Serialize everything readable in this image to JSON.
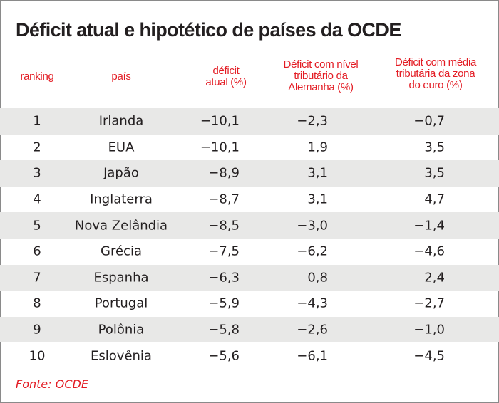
{
  "chart_data": {
    "type": "table",
    "title": "Déficit atual e hipotético de países da OCDE",
    "columns": {
      "ranking": "ranking",
      "country": "país",
      "current": [
        "déficit",
        "atual (%)"
      ],
      "germany": [
        "Déficit com nível",
        "tributário da",
        "Alemanha (%)"
      ],
      "eurozone": [
        "Déficit com média",
        "tributária da zona",
        "do euro (%)"
      ]
    },
    "rows": [
      {
        "rank": "1",
        "country": "Irlanda",
        "current": "−10,1",
        "germany": "−2,3",
        "eurozone": "−0,7"
      },
      {
        "rank": "2",
        "country": "EUA",
        "current": "−10,1",
        "germany": "1,9",
        "eurozone": "3,5"
      },
      {
        "rank": "3",
        "country": "Japão",
        "current": "−8,9",
        "germany": "3,1",
        "eurozone": "3,5"
      },
      {
        "rank": "4",
        "country": "Inglaterra",
        "current": "−8,7",
        "germany": "3,1",
        "eurozone": "4,7"
      },
      {
        "rank": "5",
        "country": "Nova Zelândia",
        "current": "−8,5",
        "germany": "−3,0",
        "eurozone": "−1,4"
      },
      {
        "rank": "6",
        "country": "Grécia",
        "current": "−7,5",
        "germany": "−6,2",
        "eurozone": "−4,6"
      },
      {
        "rank": "7",
        "country": "Espanha",
        "current": "−6,3",
        "germany": "0,8",
        "eurozone": "2,4"
      },
      {
        "rank": "8",
        "country": "Portugal",
        "current": "−5,9",
        "germany": "−4,3",
        "eurozone": "−2,7"
      },
      {
        "rank": "9",
        "country": "Polônia",
        "current": "−5,8",
        "germany": "−2,6",
        "eurozone": "−1,0"
      },
      {
        "rank": "10",
        "country": "Eslovênia",
        "current": "−5,6",
        "germany": "−6,1",
        "eurozone": "−4,5"
      }
    ],
    "source": "Fonte: OCDE",
    "colors": {
      "accent": "#e31b23",
      "shade": "#e8e8e7",
      "text": "#231f20"
    }
  }
}
